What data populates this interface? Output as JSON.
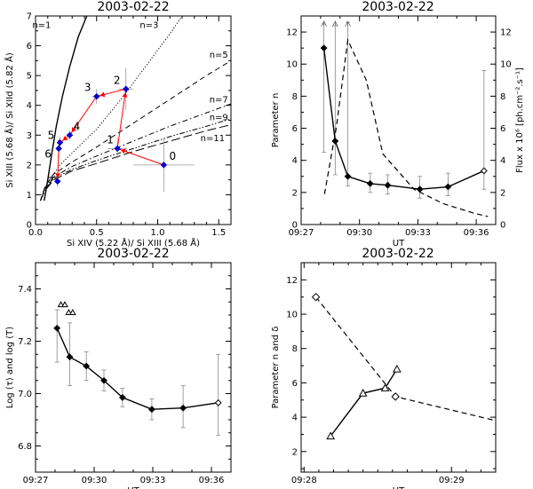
{
  "chart_data": [
    {
      "id": "p1",
      "type": "scatter",
      "title": "2003-02-22",
      "xlabel": "Si XIV (5.22 Å)/ Si XIII (5.68 Å)",
      "ylabel": "Si XIII (5.68 Å)/ Si XIId (5.82 Å)",
      "xlim": [
        0,
        1.6
      ],
      "ylim": [
        0,
        7
      ],
      "xticks": [
        "0.0",
        "0.5",
        "1.0",
        "1.5"
      ],
      "yticks": [
        "0",
        "1",
        "2",
        "3",
        "4",
        "5",
        "6",
        "7"
      ],
      "curve_labels": [
        {
          "text": "n=1",
          "x": 0.05,
          "y": 6.6
        },
        {
          "text": "n=3",
          "x": 0.93,
          "y": 6.6
        },
        {
          "text": "n=5",
          "x": 1.5,
          "y": 5.6
        },
        {
          "text": "n=7",
          "x": 1.5,
          "y": 4.1
        },
        {
          "text": "n=9",
          "x": 1.5,
          "y": 3.5
        },
        {
          "text": "n=11",
          "x": 1.45,
          "y": 2.8
        }
      ],
      "curves": [
        {
          "n": 1,
          "style": "solid",
          "points": [
            [
              0.07,
              0.8
            ],
            [
              0.08,
              1.0
            ],
            [
              0.1,
              1.5
            ],
            [
              0.13,
              2.3
            ],
            [
              0.17,
              3.3
            ],
            [
              0.22,
              4.3
            ],
            [
              0.28,
              5.3
            ],
            [
              0.35,
              6.3
            ],
            [
              0.42,
              7.0
            ]
          ]
        },
        {
          "n": 3,
          "style": "dotted",
          "points": [
            [
              0.05,
              1.0
            ],
            [
              0.1,
              1.4
            ],
            [
              0.2,
              2.0
            ],
            [
              0.35,
              2.6
            ],
            [
              0.5,
              3.2
            ],
            [
              0.7,
              4.2
            ],
            [
              0.9,
              5.3
            ],
            [
              1.1,
              6.4
            ],
            [
              1.2,
              7.0
            ]
          ]
        },
        {
          "n": 5,
          "style": "dashed",
          "points": [
            [
              0.04,
              0.8
            ],
            [
              0.08,
              1.3
            ],
            [
              0.15,
              1.7
            ],
            [
              0.3,
              2.1
            ],
            [
              0.5,
              2.6
            ],
            [
              0.8,
              3.4
            ],
            [
              1.1,
              4.2
            ],
            [
              1.4,
              5.0
            ],
            [
              1.6,
              5.5
            ]
          ]
        },
        {
          "n": 7,
          "style": "dashdot",
          "points": [
            [
              0.04,
              0.8
            ],
            [
              0.08,
              1.25
            ],
            [
              0.15,
              1.6
            ],
            [
              0.3,
              1.95
            ],
            [
              0.5,
              2.3
            ],
            [
              0.8,
              2.8
            ],
            [
              1.1,
              3.3
            ],
            [
              1.4,
              3.75
            ],
            [
              1.6,
              4.05
            ]
          ]
        },
        {
          "n": 9,
          "style": "dashdotdot",
          "points": [
            [
              0.04,
              0.8
            ],
            [
              0.08,
              1.2
            ],
            [
              0.15,
              1.55
            ],
            [
              0.3,
              1.85
            ],
            [
              0.5,
              2.15
            ],
            [
              0.8,
              2.55
            ],
            [
              1.1,
              2.95
            ],
            [
              1.4,
              3.3
            ],
            [
              1.6,
              3.55
            ]
          ]
        },
        {
          "n": 11,
          "style": "longdash",
          "points": [
            [
              0.04,
              0.8
            ],
            [
              0.08,
              1.15
            ],
            [
              0.15,
              1.5
            ],
            [
              0.3,
              1.8
            ],
            [
              0.5,
              2.05
            ],
            [
              0.8,
              2.45
            ],
            [
              1.1,
              2.8
            ],
            [
              1.4,
              3.15
            ],
            [
              1.6,
              3.35
            ]
          ]
        }
      ],
      "points": [
        {
          "label": "0",
          "x": 1.05,
          "y": 2.0,
          "xerr": 0.25,
          "yerr": 0.9
        },
        {
          "label": "1",
          "x": 0.67,
          "y": 2.55,
          "xerr": 0.08,
          "yerr": 0.35
        },
        {
          "label": "2",
          "x": 0.74,
          "y": 4.55,
          "xerr": 0.06,
          "yerr": 0.7
        },
        {
          "label": "3",
          "x": 0.5,
          "y": 4.3,
          "xerr": 0.04,
          "yerr": 0.25
        },
        {
          "label": "4",
          "x": 0.28,
          "y": 3.0,
          "xerr": 0.03,
          "yerr": 0.15
        },
        {
          "label": "5",
          "x": 0.2,
          "y": 2.75,
          "xerr": 0.02,
          "yerr": 0.2
        },
        {
          "label": "6",
          "x": 0.19,
          "y": 2.55,
          "xerr": 0.02,
          "yerr": 0.3
        },
        {
          "label": "7",
          "x": 0.18,
          "y": 1.45,
          "xerr": 0.02,
          "yerr": 0.2
        }
      ],
      "path_order": [
        "0",
        "1",
        "2",
        "3",
        "4",
        "5",
        "6",
        "7"
      ],
      "colors": {
        "path": "#ff0000",
        "marker": "#0000cc"
      }
    },
    {
      "id": "p2",
      "type": "line",
      "title": "2003-02-22",
      "xlabel": "UT",
      "ylabel": "Parameter n",
      "ylabel_right": "Flux x 10⁶ [ph.cm⁻².s⁻¹]",
      "xlim": [
        27,
        37
      ],
      "ylim": [
        0,
        13
      ],
      "xticks": [
        {
          "v": 27,
          "label": "09:27"
        },
        {
          "v": 30,
          "label": "09:30"
        },
        {
          "v": 33,
          "label": "09:33"
        },
        {
          "v": 36,
          "label": "09:36"
        }
      ],
      "yticks": [
        "0",
        "2",
        "4",
        "6",
        "8",
        "10",
        "12"
      ],
      "yticks_right": [
        "0",
        "2",
        "4",
        "6",
        "8",
        "10",
        "12"
      ],
      "series": [
        {
          "style": "solid-diamond",
          "x": [
            28.17,
            28.75,
            29.4,
            30.55,
            31.45,
            33.1,
            34.55,
            36.4
          ],
          "y": [
            11.0,
            5.2,
            3.0,
            2.55,
            2.45,
            2.2,
            2.35,
            3.35
          ],
          "err": [
            [
              4.5,
              12.5
            ],
            [
              3.1,
              12.4
            ],
            [
              2.4,
              12.6
            ],
            [
              2.0,
              3.2
            ],
            [
              1.9,
              3.1
            ],
            [
              1.65,
              3.0
            ],
            [
              1.8,
              3.2
            ],
            [
              2.2,
              9.6
            ]
          ]
        },
        {
          "style": "dashed",
          "x": [
            28.2,
            28.8,
            29.4,
            30.35,
            31.2,
            32.8,
            34.3,
            35.9,
            36.6
          ],
          "y": [
            1.9,
            6.0,
            11.5,
            9.0,
            4.4,
            2.2,
            1.3,
            0.7,
            0.5
          ]
        }
      ],
      "arrows": [
        28.17,
        28.75,
        29.4
      ]
    },
    {
      "id": "p3",
      "type": "line",
      "title": "2003-02-22",
      "xlabel": "UT",
      "ylabel": "Log (τ) and log (T)",
      "xlim": [
        27,
        37
      ],
      "ylim": [
        6.7,
        7.5
      ],
      "xticks": [
        {
          "v": 27,
          "label": "09:27"
        },
        {
          "v": 30,
          "label": "09:30"
        },
        {
          "v": 33,
          "label": "09:33"
        },
        {
          "v": 36,
          "label": "09:36"
        }
      ],
      "yticks": [
        {
          "v": 6.8,
          "label": "6.8"
        },
        {
          "v": 7.0,
          "label": "7.0"
        },
        {
          "v": 7.2,
          "label": "7.2"
        },
        {
          "v": 7.4,
          "label": "7.4"
        }
      ],
      "series": [
        {
          "style": "solid-diamond",
          "x": [
            28.1,
            28.75,
            29.6,
            30.5,
            31.45,
            32.95,
            34.55,
            36.35
          ],
          "y": [
            7.25,
            7.14,
            7.105,
            7.05,
            6.985,
            6.94,
            6.945,
            6.965
          ],
          "err": [
            [
              7.12,
              7.32
            ],
            [
              7.03,
              7.27
            ],
            [
              7.05,
              7.16
            ],
            [
              7.01,
              7.09
            ],
            [
              6.95,
              7.02
            ],
            [
              6.9,
              6.98
            ],
            [
              6.87,
              7.03
            ],
            [
              6.84,
              7.15
            ]
          ]
        },
        {
          "style": "triangles",
          "x": [
            28.3,
            28.5,
            28.7,
            28.9
          ],
          "y": [
            7.34,
            7.34,
            7.31,
            7.31
          ]
        }
      ]
    },
    {
      "id": "p4",
      "type": "line",
      "title": "2003-02-22",
      "xlabel": "UT",
      "ylabel": "Parameter n and δ",
      "xlim": [
        27.98,
        29.3
      ],
      "ylim": [
        0.8,
        13
      ],
      "xticks": [
        {
          "v": 28.0,
          "label": "09:28"
        },
        {
          "v": 29.0,
          "label": "09:29"
        }
      ],
      "yticks": [
        {
          "v": 2,
          "label": "2"
        },
        {
          "v": 4,
          "label": "4"
        },
        {
          "v": 6,
          "label": "6"
        },
        {
          "v": 8,
          "label": "8"
        },
        {
          "v": 10,
          "label": "10"
        },
        {
          "v": 12,
          "label": "12"
        }
      ],
      "series": [
        {
          "style": "dashed-diamond",
          "x": [
            28.08,
            28.62,
            29.3
          ],
          "y": [
            11.0,
            5.2,
            3.8
          ],
          "markers": [
            true,
            true,
            false
          ]
        },
        {
          "style": "solid-triangle",
          "x": [
            28.18,
            28.4,
            28.55,
            28.63
          ],
          "y": [
            2.9,
            5.4,
            5.7,
            6.8
          ]
        }
      ]
    }
  ]
}
